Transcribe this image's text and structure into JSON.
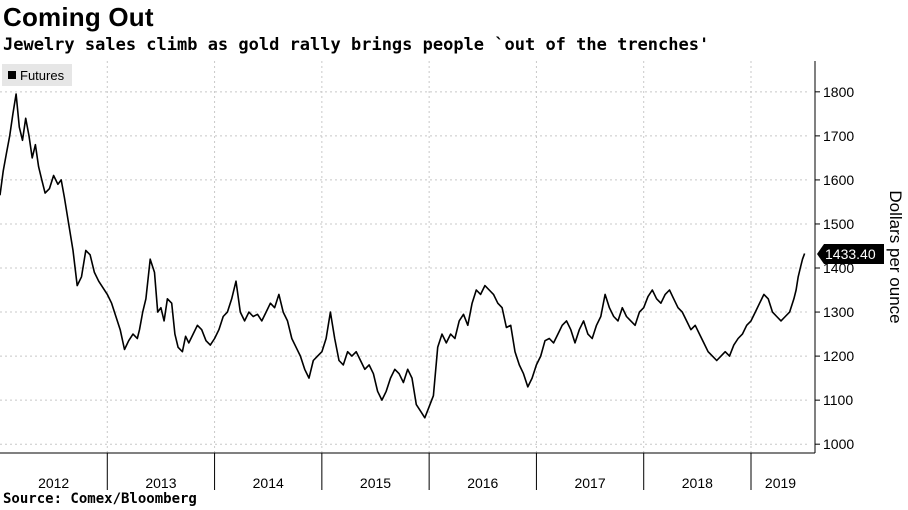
{
  "title": "Coming Out",
  "subtitle": "Jewelry sales climb as gold rally brings people `out of the trenches'",
  "source": "Source: Comex/Bloomberg",
  "chart_data": {
    "type": "line",
    "ylabel": "Dollars per ounce",
    "ylim": [
      980,
      1870
    ],
    "yticks": [
      1000,
      1100,
      1200,
      1300,
      1400,
      1500,
      1600,
      1700,
      1800
    ],
    "xlim": [
      2012.0,
      2019.55
    ],
    "year_labels": [
      "2012",
      "2013",
      "2014",
      "2015",
      "2016",
      "2017",
      "2018",
      "2019"
    ],
    "legend_entry": "Futures",
    "last_value_label": "1433.40",
    "line_color": "#000000",
    "grid": "on",
    "series": [
      {
        "name": "Futures",
        "x": [
          2012.0,
          2012.03,
          2012.06,
          2012.09,
          2012.12,
          2012.15,
          2012.18,
          2012.21,
          2012.24,
          2012.27,
          2012.3,
          2012.33,
          2012.36,
          2012.39,
          2012.42,
          2012.46,
          2012.5,
          2012.54,
          2012.57,
          2012.6,
          2012.64,
          2012.68,
          2012.72,
          2012.76,
          2012.8,
          2012.84,
          2012.88,
          2012.92,
          2012.96,
          2013.0,
          2013.04,
          2013.08,
          2013.12,
          2013.16,
          2013.2,
          2013.24,
          2013.26,
          2013.28,
          2013.3,
          2013.33,
          2013.36,
          2013.4,
          2013.44,
          2013.47,
          2013.5,
          2013.53,
          2013.56,
          2013.6,
          2013.63,
          2013.66,
          2013.7,
          2013.73,
          2013.76,
          2013.8,
          2013.84,
          2013.88,
          2013.92,
          2013.96,
          2014.0,
          2014.04,
          2014.08,
          2014.12,
          2014.16,
          2014.2,
          2014.24,
          2014.28,
          2014.32,
          2014.36,
          2014.4,
          2014.44,
          2014.48,
          2014.52,
          2014.56,
          2014.6,
          2014.64,
          2014.68,
          2014.72,
          2014.76,
          2014.8,
          2014.84,
          2014.88,
          2014.92,
          2014.96,
          2015.0,
          2015.04,
          2015.08,
          2015.12,
          2015.16,
          2015.2,
          2015.24,
          2015.28,
          2015.32,
          2015.36,
          2015.4,
          2015.44,
          2015.48,
          2015.52,
          2015.56,
          2015.6,
          2015.64,
          2015.68,
          2015.72,
          2015.76,
          2015.8,
          2015.84,
          2015.88,
          2015.92,
          2015.96,
          2016.0,
          2016.04,
          2016.08,
          2016.12,
          2016.16,
          2016.2,
          2016.24,
          2016.28,
          2016.32,
          2016.36,
          2016.4,
          2016.44,
          2016.48,
          2016.52,
          2016.56,
          2016.6,
          2016.64,
          2016.68,
          2016.72,
          2016.76,
          2016.8,
          2016.84,
          2016.88,
          2016.92,
          2016.96,
          2017.0,
          2017.04,
          2017.08,
          2017.12,
          2017.16,
          2017.2,
          2017.24,
          2017.28,
          2017.32,
          2017.36,
          2017.4,
          2017.44,
          2017.48,
          2017.52,
          2017.56,
          2017.6,
          2017.64,
          2017.68,
          2017.72,
          2017.76,
          2017.8,
          2017.84,
          2017.88,
          2017.92,
          2017.96,
          2018.0,
          2018.04,
          2018.08,
          2018.12,
          2018.16,
          2018.2,
          2018.24,
          2018.28,
          2018.32,
          2018.36,
          2018.4,
          2018.44,
          2018.48,
          2018.52,
          2018.56,
          2018.6,
          2018.64,
          2018.68,
          2018.72,
          2018.76,
          2018.8,
          2018.84,
          2018.88,
          2018.92,
          2018.96,
          2019.0,
          2019.04,
          2019.08,
          2019.12,
          2019.16,
          2019.2,
          2019.24,
          2019.28,
          2019.32,
          2019.36,
          2019.4,
          2019.42,
          2019.44,
          2019.46,
          2019.48,
          2019.5
        ],
        "y": [
          1565,
          1620,
          1660,
          1700,
          1750,
          1795,
          1720,
          1690,
          1740,
          1700,
          1650,
          1680,
          1630,
          1600,
          1570,
          1580,
          1610,
          1590,
          1600,
          1560,
          1500,
          1440,
          1360,
          1380,
          1440,
          1430,
          1390,
          1370,
          1355,
          1340,
          1320,
          1290,
          1260,
          1215,
          1235,
          1250,
          1245,
          1240,
          1260,
          1300,
          1330,
          1420,
          1390,
          1300,
          1310,
          1280,
          1330,
          1320,
          1250,
          1220,
          1210,
          1245,
          1230,
          1250,
          1270,
          1260,
          1235,
          1225,
          1240,
          1260,
          1290,
          1300,
          1330,
          1370,
          1300,
          1280,
          1300,
          1290,
          1295,
          1280,
          1300,
          1320,
          1310,
          1340,
          1300,
          1280,
          1240,
          1220,
          1200,
          1170,
          1150,
          1190,
          1200,
          1210,
          1240,
          1300,
          1240,
          1190,
          1180,
          1210,
          1200,
          1210,
          1190,
          1170,
          1180,
          1160,
          1120,
          1100,
          1120,
          1150,
          1170,
          1160,
          1140,
          1170,
          1150,
          1090,
          1075,
          1060,
          1085,
          1110,
          1220,
          1250,
          1230,
          1250,
          1240,
          1280,
          1295,
          1270,
          1320,
          1350,
          1340,
          1360,
          1350,
          1340,
          1320,
          1310,
          1265,
          1270,
          1210,
          1180,
          1160,
          1130,
          1150,
          1180,
          1200,
          1235,
          1240,
          1230,
          1250,
          1270,
          1280,
          1260,
          1230,
          1260,
          1280,
          1250,
          1240,
          1270,
          1290,
          1340,
          1310,
          1290,
          1280,
          1310,
          1290,
          1280,
          1270,
          1300,
          1310,
          1335,
          1350,
          1330,
          1320,
          1340,
          1350,
          1330,
          1310,
          1300,
          1280,
          1260,
          1270,
          1250,
          1230,
          1210,
          1200,
          1190,
          1200,
          1210,
          1200,
          1225,
          1240,
          1250,
          1270,
          1280,
          1300,
          1320,
          1340,
          1330,
          1300,
          1290,
          1280,
          1290,
          1300,
          1330,
          1350,
          1380,
          1400,
          1420,
          1433
        ]
      }
    ]
  }
}
